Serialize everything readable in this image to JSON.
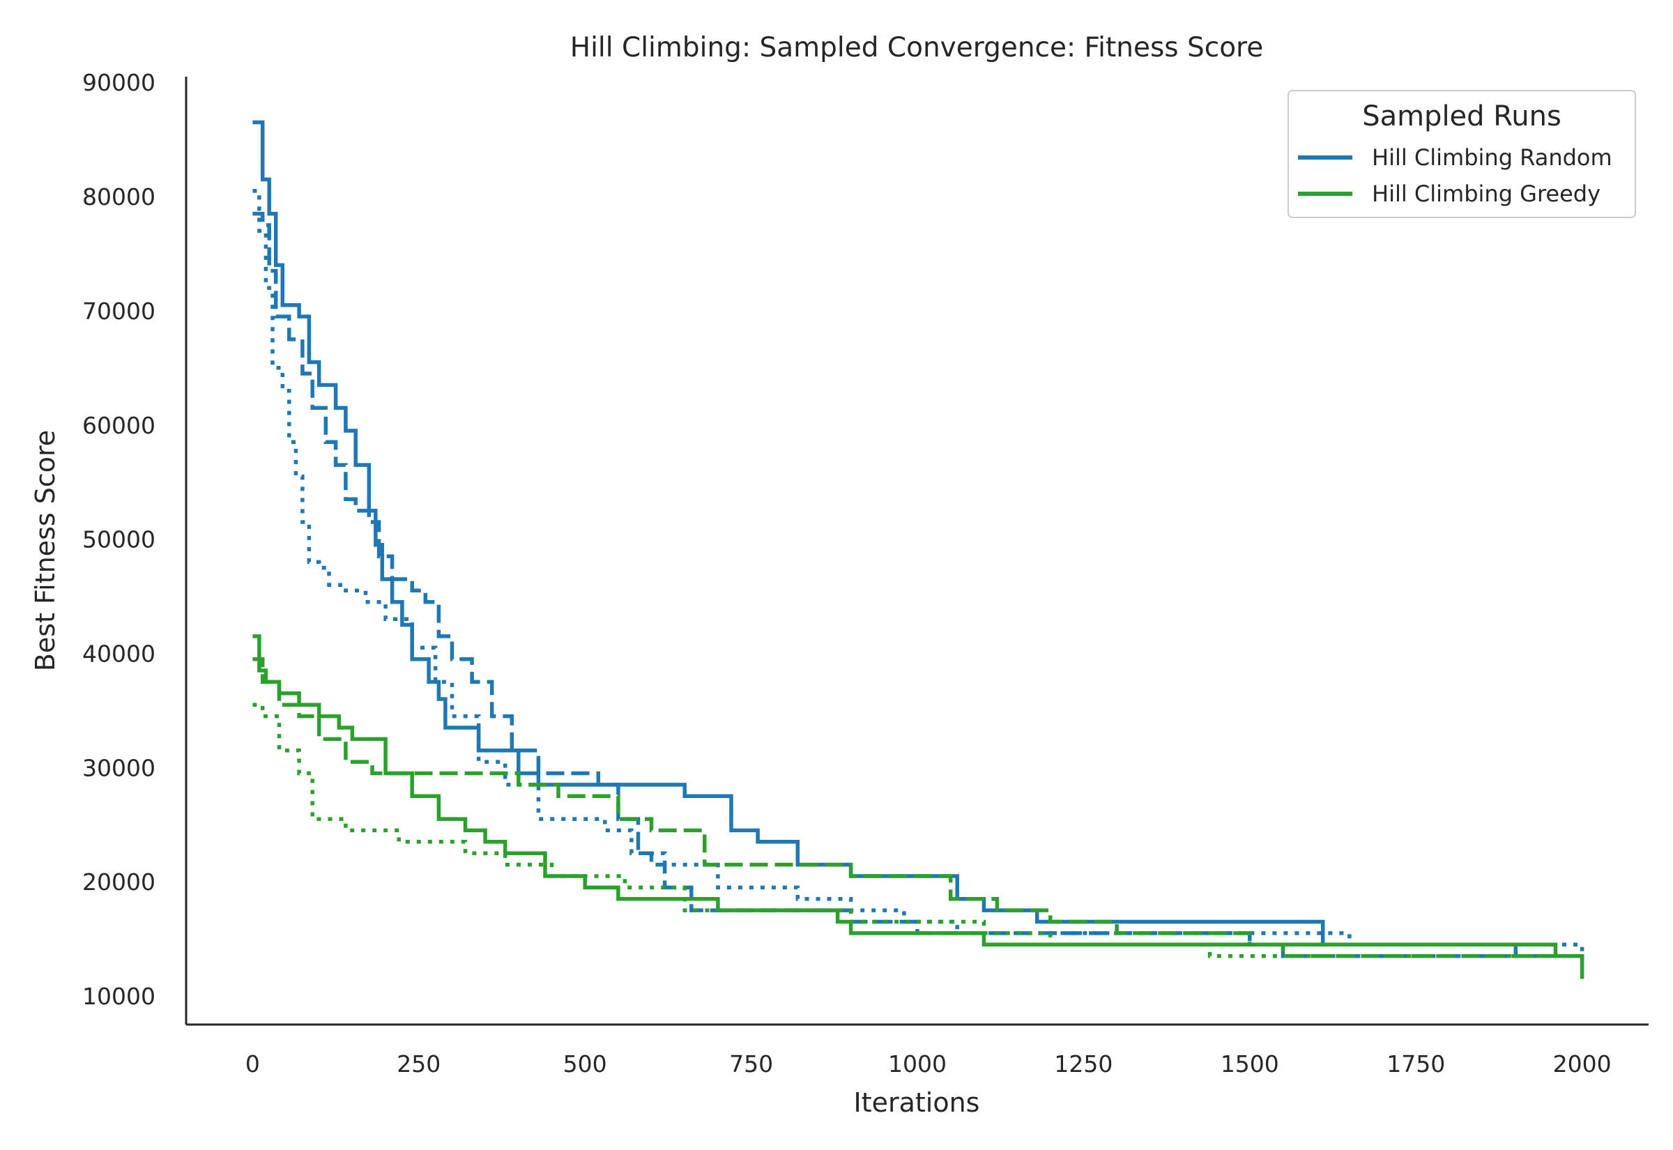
{
  "chart_data": {
    "type": "line",
    "title": "Hill Climbing: Sampled Convergence: Fitness Score",
    "xlabel": "Iterations",
    "ylabel": "Best Fitness Score",
    "xlim": [
      -100,
      2100
    ],
    "ylim": [
      7500,
      90500
    ],
    "xticks": [
      0,
      250,
      500,
      750,
      1000,
      1250,
      1500,
      1750,
      2000
    ],
    "yticks": [
      10000,
      20000,
      30000,
      40000,
      50000,
      60000,
      70000,
      80000,
      90000
    ],
    "grid": false,
    "legend": {
      "title": "Sampled Runs",
      "placement": "top-right",
      "entries": [
        {
          "label": "Hill Climbing Random",
          "color": "#1f77b4"
        },
        {
          "label": "Hill Climbing Greedy",
          "color": "#2ca02c"
        }
      ]
    },
    "series": [
      {
        "group": "Hill Climbing Random",
        "color": "#1f77b4",
        "style": "solid",
        "x": [
          0,
          15,
          25,
          35,
          45,
          70,
          85,
          100,
          125,
          140,
          155,
          175,
          185,
          195,
          210,
          225,
          240,
          265,
          280,
          290,
          305,
          340,
          370,
          400,
          430,
          650,
          670,
          720,
          760,
          820,
          900,
          1060,
          1100,
          1180,
          1340,
          1590,
          1610,
          1900,
          2000
        ],
        "y": [
          86500,
          81500,
          78500,
          74000,
          70500,
          69500,
          65500,
          63500,
          61500,
          59500,
          56500,
          52500,
          49500,
          46500,
          44500,
          42500,
          39500,
          37500,
          36000,
          33500,
          33500,
          31500,
          31500,
          29500,
          28500,
          27500,
          27500,
          24500,
          23500,
          21500,
          20500,
          18500,
          17500,
          16500,
          16500,
          16500,
          14500,
          13500,
          13500
        ]
      },
      {
        "group": "Hill Climbing Random",
        "color": "#1f77b4",
        "style": "dashed",
        "x": [
          0,
          15,
          25,
          35,
          55,
          75,
          90,
          110,
          125,
          140,
          155,
          175,
          190,
          210,
          240,
          260,
          280,
          300,
          330,
          360,
          390,
          430,
          520,
          550,
          580,
          600,
          620,
          660,
          800,
          900,
          1000,
          1100,
          1300,
          1500,
          1550,
          2000
        ],
        "y": [
          78500,
          77500,
          73500,
          69500,
          67500,
          64500,
          61500,
          58500,
          56500,
          53500,
          52500,
          51500,
          48500,
          46500,
          45500,
          44500,
          41500,
          39500,
          37500,
          34500,
          31500,
          29500,
          28500,
          25500,
          22500,
          21500,
          19500,
          17500,
          17500,
          16500,
          15500,
          15500,
          15500,
          14500,
          13500,
          12500
        ]
      },
      {
        "group": "Hill Climbing Random",
        "color": "#1f77b4",
        "style": "dotted",
        "x": [
          0,
          10,
          20,
          30,
          45,
          55,
          65,
          75,
          85,
          100,
          115,
          140,
          170,
          200,
          240,
          275,
          300,
          340,
          380,
          430,
          530,
          570,
          620,
          700,
          820,
          900,
          980,
          1060,
          1150,
          1280,
          1550,
          1650,
          2000
        ],
        "y": [
          80500,
          77000,
          72000,
          65000,
          63000,
          58500,
          55500,
          51500,
          48000,
          47500,
          46000,
          45500,
          44500,
          43000,
          40500,
          37500,
          34500,
          30500,
          28500,
          25500,
          24500,
          22500,
          21500,
          19500,
          18500,
          17500,
          16500,
          15500,
          15500,
          15500,
          15500,
          14500,
          13500
        ]
      },
      {
        "group": "Hill Climbing Greedy",
        "color": "#2ca02c",
        "style": "solid",
        "x": [
          0,
          10,
          20,
          40,
          70,
          100,
          130,
          150,
          200,
          240,
          280,
          320,
          350,
          380,
          440,
          500,
          550,
          650,
          700,
          880,
          900,
          1000,
          1100,
          1900,
          1960,
          2000
        ],
        "y": [
          41500,
          38500,
          37500,
          36500,
          35500,
          34500,
          33500,
          32500,
          29500,
          27500,
          25500,
          24500,
          23500,
          22500,
          20500,
          19500,
          18500,
          18500,
          17500,
          16500,
          15500,
          15500,
          14500,
          14500,
          13500,
          11500
        ]
      },
      {
        "group": "Hill Climbing Greedy",
        "color": "#2ca02c",
        "style": "dashed",
        "x": [
          0,
          15,
          40,
          70,
          100,
          140,
          180,
          200,
          300,
          400,
          460,
          550,
          600,
          680,
          740,
          900,
          1050,
          1120,
          1200,
          1300,
          1500,
          1550,
          1600,
          2000
        ],
        "y": [
          39500,
          37500,
          35500,
          34500,
          32500,
          30500,
          29500,
          29500,
          29500,
          28500,
          27500,
          25500,
          24500,
          21500,
          21500,
          20500,
          18500,
          17500,
          16500,
          15500,
          14500,
          13500,
          13500,
          13500
        ]
      },
      {
        "group": "Hill Climbing Greedy",
        "color": "#2ca02c",
        "style": "dotted",
        "x": [
          0,
          15,
          40,
          70,
          90,
          140,
          220,
          320,
          380,
          450,
          560,
          650,
          900,
          1100,
          1200,
          1440,
          1500,
          2000
        ],
        "y": [
          35500,
          34500,
          31500,
          29500,
          25500,
          24500,
          23500,
          22500,
          21500,
          20500,
          19500,
          17500,
          16500,
          15500,
          14500,
          13500,
          13500,
          13500
        ]
      }
    ]
  }
}
